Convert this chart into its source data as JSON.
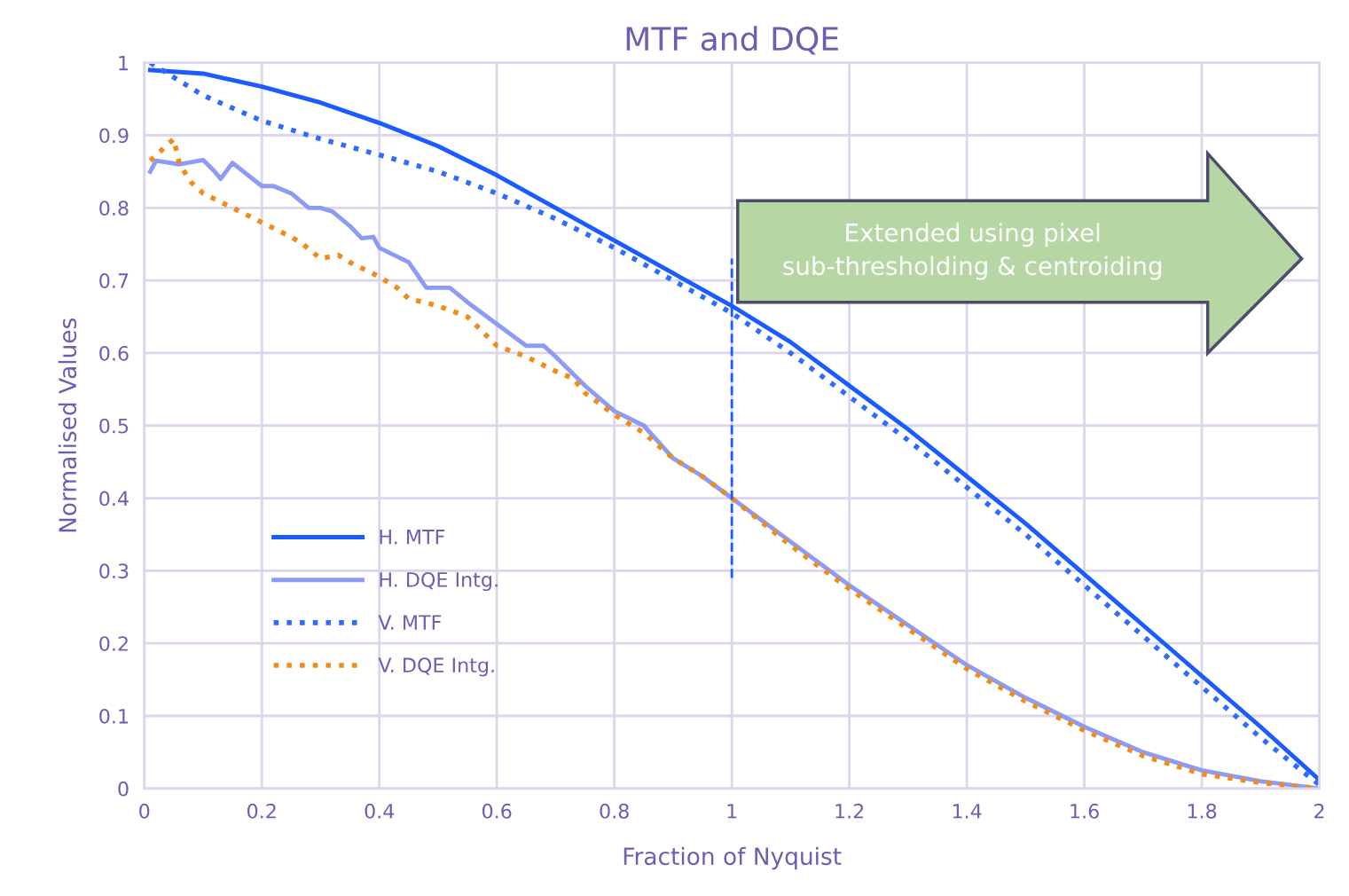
{
  "chart_data": {
    "type": "line",
    "title": "MTF and DQE",
    "xlabel": "Fraction of Nyquist",
    "ylabel": "Normalised Values",
    "xlim": [
      0,
      2
    ],
    "xticks": [
      0,
      0.2,
      0.4,
      0.6,
      0.8,
      1,
      1.2,
      1.4,
      1.6,
      1.8,
      2
    ],
    "ylim": [
      0,
      1
    ],
    "yticks": [
      0,
      0.1,
      0.2,
      0.3,
      0.4,
      0.5,
      0.6,
      0.7,
      0.8,
      0.9,
      1
    ],
    "grid": true,
    "legend": "bottom left",
    "annotations": [
      "Extended using pixel sub-thresholding & centroiding"
    ],
    "ref_lines": [
      {
        "axis": "x",
        "value": 1,
        "color": "#1a5cff",
        "line_style": "dashed"
      }
    ],
    "series": [
      {
        "name": "H. MTF",
        "color": "#1a5cff",
        "line_style": "solid",
        "x": [
          0.01,
          0.1,
          0.2,
          0.3,
          0.4,
          0.5,
          0.6,
          0.7,
          0.8,
          0.9,
          1.0,
          1.1,
          1.2,
          1.3,
          1.4,
          1.5,
          1.6,
          1.7,
          1.8,
          1.9,
          2.0
        ],
        "values": [
          0.99,
          0.985,
          0.967,
          0.945,
          0.917,
          0.885,
          0.845,
          0.8,
          0.755,
          0.71,
          0.665,
          0.615,
          0.555,
          0.495,
          0.43,
          0.365,
          0.295,
          0.225,
          0.155,
          0.085,
          0.012
        ]
      },
      {
        "name": "H. DQE Intg.",
        "color": "#8c9cf5",
        "line_style": "solid",
        "x": [
          0.01,
          0.02,
          0.06,
          0.1,
          0.12,
          0.13,
          0.15,
          0.2,
          0.22,
          0.25,
          0.28,
          0.3,
          0.32,
          0.35,
          0.37,
          0.39,
          0.4,
          0.45,
          0.48,
          0.5,
          0.52,
          0.55,
          0.6,
          0.65,
          0.68,
          0.7,
          0.75,
          0.8,
          0.85,
          0.9,
          0.95,
          1.0,
          1.1,
          1.2,
          1.3,
          1.4,
          1.5,
          1.6,
          1.7,
          1.8,
          1.9,
          2.0
        ],
        "values": [
          0.85,
          0.865,
          0.86,
          0.866,
          0.85,
          0.84,
          0.862,
          0.83,
          0.83,
          0.82,
          0.8,
          0.8,
          0.795,
          0.775,
          0.758,
          0.76,
          0.745,
          0.725,
          0.69,
          0.69,
          0.69,
          0.67,
          0.64,
          0.61,
          0.61,
          0.595,
          0.555,
          0.52,
          0.5,
          0.455,
          0.43,
          0.4,
          0.34,
          0.28,
          0.225,
          0.17,
          0.125,
          0.085,
          0.05,
          0.025,
          0.01,
          0.0
        ]
      },
      {
        "name": "V. MTF",
        "color": "#2e6bff",
        "line_style": "dotted",
        "x": [
          0.01,
          0.05,
          0.1,
          0.2,
          0.3,
          0.4,
          0.5,
          0.6,
          0.7,
          0.8,
          0.9,
          1.0,
          1.1,
          1.2,
          1.3,
          1.4,
          1.5,
          1.6,
          1.7,
          1.8,
          1.9,
          2.0
        ],
        "values": [
          1.0,
          0.98,
          0.955,
          0.92,
          0.895,
          0.873,
          0.85,
          0.82,
          0.785,
          0.745,
          0.7,
          0.655,
          0.6,
          0.54,
          0.48,
          0.415,
          0.35,
          0.28,
          0.21,
          0.14,
          0.07,
          0.005
        ]
      },
      {
        "name": "V. DQE Intg.",
        "color": "#f08c1a",
        "line_style": "dotted",
        "x": [
          0.01,
          0.03,
          0.05,
          0.06,
          0.08,
          0.1,
          0.15,
          0.2,
          0.25,
          0.27,
          0.3,
          0.33,
          0.35,
          0.4,
          0.43,
          0.45,
          0.5,
          0.55,
          0.6,
          0.65,
          0.7,
          0.73,
          0.75,
          0.8,
          0.85,
          0.9,
          0.95,
          1.0,
          1.1,
          1.2,
          1.3,
          1.4,
          1.5,
          1.6,
          1.7,
          1.8,
          1.9,
          2.0
        ],
        "values": [
          0.865,
          0.88,
          0.895,
          0.86,
          0.835,
          0.82,
          0.8,
          0.78,
          0.76,
          0.75,
          0.73,
          0.735,
          0.725,
          0.705,
          0.69,
          0.675,
          0.665,
          0.65,
          0.61,
          0.595,
          0.575,
          0.565,
          0.545,
          0.515,
          0.49,
          0.455,
          0.43,
          0.4,
          0.335,
          0.275,
          0.22,
          0.165,
          0.12,
          0.08,
          0.045,
          0.02,
          0.008,
          0.0
        ]
      }
    ]
  }
}
